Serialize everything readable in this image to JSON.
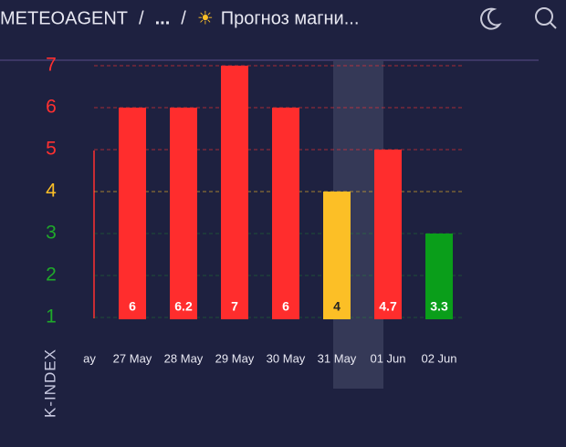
{
  "header": {
    "breadcrumb": [
      "METEOAGENT",
      "/",
      "...",
      "/",
      "☀",
      "Прогноз магни..."
    ]
  },
  "chart_data": {
    "type": "bar",
    "y_label": "K-INDEX",
    "categories": [
      "ay",
      "27 May",
      "28 May",
      "29 May",
      "30 May",
      "31 May",
      "01 Jun",
      "02 Jun"
    ],
    "levels": [
      null,
      6,
      6,
      7,
      6,
      4,
      5,
      3
    ],
    "values": [
      null,
      6,
      6.2,
      7,
      6,
      4,
      4.7,
      3.3
    ],
    "colors": [
      null,
      "#ff2d2d",
      "#ff2d2d",
      "#ff2d2d",
      "#ff2d2d",
      "#fcbf26",
      "#ff2d2d",
      "#0a9e1a"
    ],
    "highlight": "31 May",
    "ylim": [
      1,
      7
    ],
    "yticks": [
      1,
      2,
      3,
      4,
      5,
      6,
      7
    ],
    "tick_colors": [
      "#1faa2a",
      "#1faa2a",
      "#1faa2a",
      "#fcbf26",
      "#ff3030",
      "#ff3030",
      "#ff3030"
    ],
    "grid": true
  }
}
